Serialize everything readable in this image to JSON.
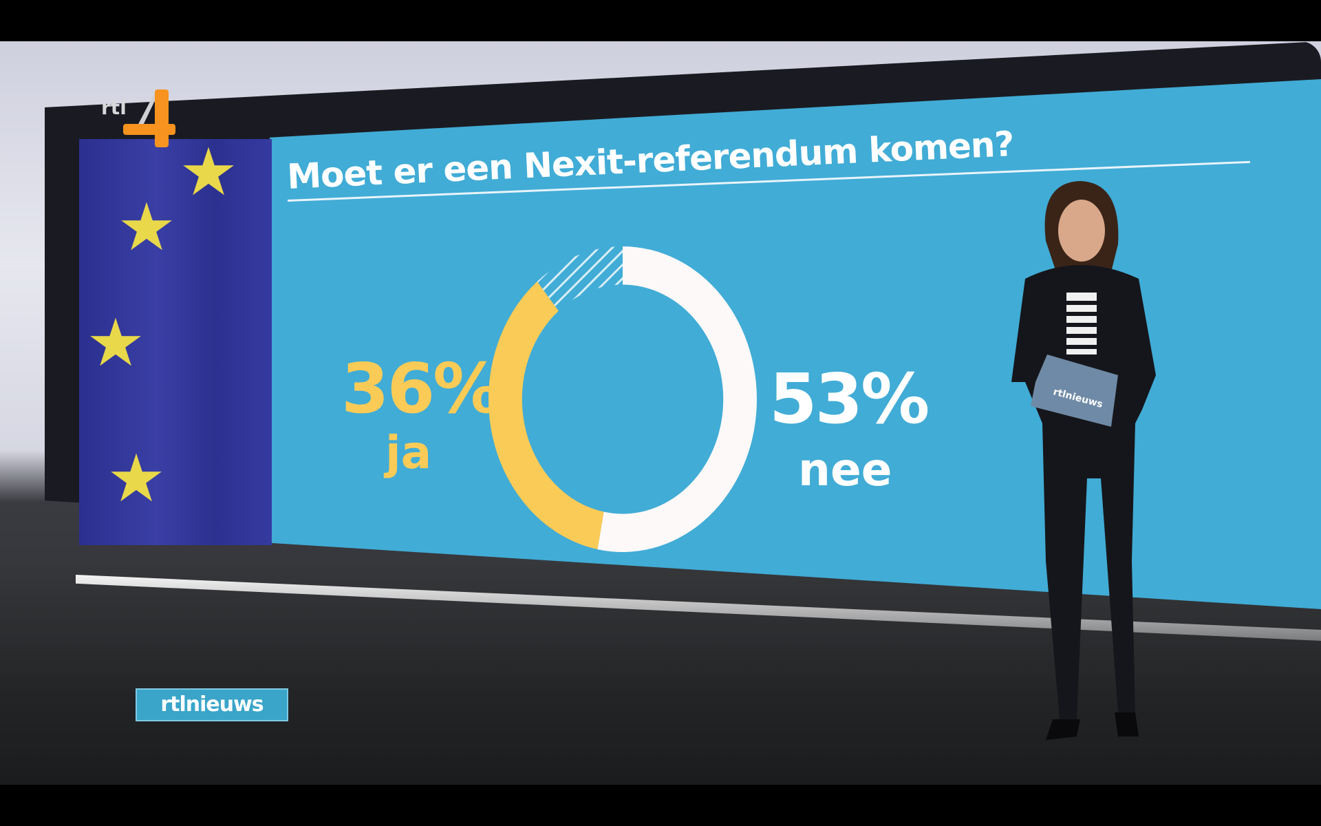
{
  "broadcast": {
    "channel_logo": "rtl 4",
    "program_badge": "rtlnieuws",
    "folder_logo": "rtlnieuws"
  },
  "graphic": {
    "title": "Moet er een Nexit-referendum komen?",
    "yes_value": "36%",
    "yes_label": "ja",
    "no_value": "53%",
    "no_label": "nee"
  },
  "colors": {
    "background_panel": "#41acd6",
    "yes": "#fbcb57",
    "no": "#fdf9f9",
    "flag_blue": "#2f3497",
    "flag_star": "#e8d84a",
    "logo_orange": "#f7931e"
  },
  "chart_data": {
    "type": "pie",
    "style": "donut",
    "title": "Moet er een Nexit-referendum komen?",
    "categories": [
      "nee",
      "ja",
      "other"
    ],
    "values": [
      53,
      36,
      11
    ],
    "colors": [
      "#fdf9f9",
      "#fbcb57",
      "hatched"
    ],
    "start": "top, clockwise"
  }
}
